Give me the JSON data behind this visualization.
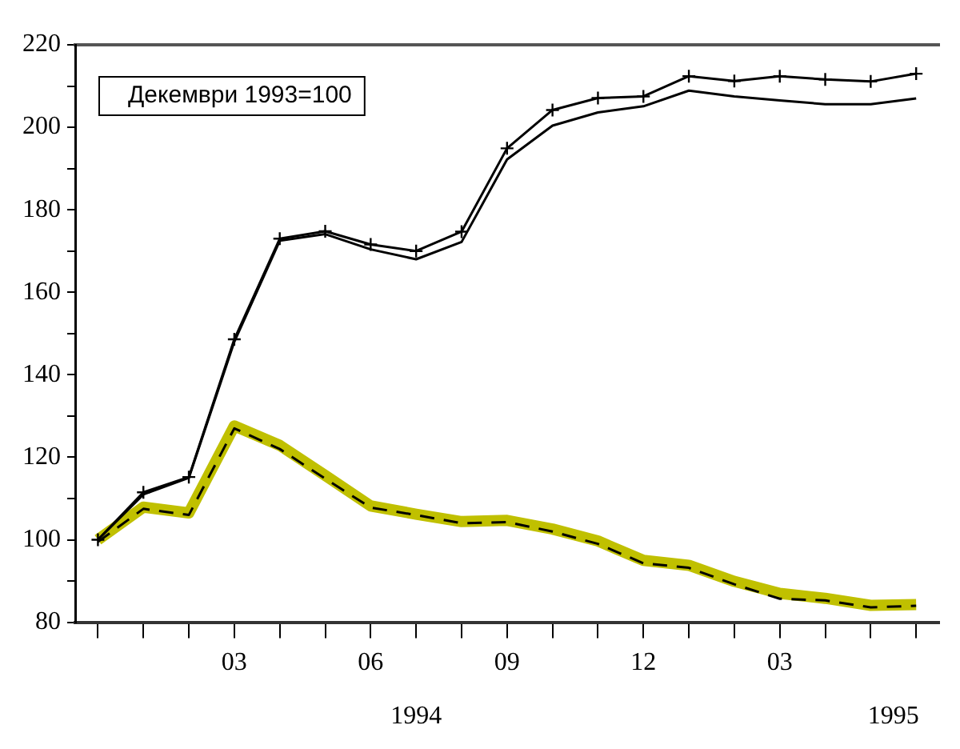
{
  "chart_data": {
    "type": "line",
    "categories": [
      null,
      null,
      null,
      "03",
      null,
      null,
      "06",
      null,
      null,
      "09",
      null,
      null,
      "12",
      null,
      null,
      "03",
      null,
      null,
      null
    ],
    "series": [
      {
        "color": "#000000",
        "marker": "cross",
        "values": [
          100,
          111.5,
          115.2,
          148.6,
          173,
          174.8,
          171.6,
          170,
          174.7,
          194.9,
          204.2,
          207.1,
          207.5,
          212.4,
          211.2,
          212.4,
          211.6,
          211.1,
          213
        ]
      },
      {
        "color": "#000000",
        "values": [
          100,
          111,
          115,
          148,
          172.5,
          174.1,
          170.4,
          168,
          172.2,
          192.2,
          200.4,
          203.6,
          205.1,
          208.9,
          207.5,
          206.5,
          205.6,
          205.6,
          207
        ]
      },
      {
        "color": "#c0c000",
        "values": [
          100,
          107.9,
          106.5,
          127.6,
          122.9,
          115.6,
          108.2,
          106.2,
          104.4,
          104.7,
          102.6,
          99.7,
          95,
          93.8,
          89.9,
          87,
          85.8,
          84.1,
          84.3
        ]
      },
      {
        "color": "#000000",
        "line_style": "dashed",
        "values": [
          99.5,
          107.5,
          106,
          127,
          122,
          114.8,
          107.8,
          106,
          104,
          104.3,
          102,
          99,
          94.3,
          93.2,
          89.2,
          85.7,
          85.3,
          83.6,
          84
        ]
      }
    ],
    "ylim": [
      80,
      220
    ],
    "yticks": [
      80,
      {
        "value": 90,
        "label": null
      },
      100,
      {
        "value": 110,
        "label": null
      },
      120,
      {
        "value": 130,
        "label": null
      },
      140,
      {
        "value": 150,
        "label": null
      },
      160,
      {
        "value": 170,
        "label": null
      },
      180,
      {
        "value": 190,
        "label": null
      },
      200,
      {
        "value": 210,
        "label": null
      },
      220
    ],
    "annotations": [
      "Декември 1993=100",
      "1994",
      "1995"
    ],
    "grid": false,
    "legend": false
  }
}
